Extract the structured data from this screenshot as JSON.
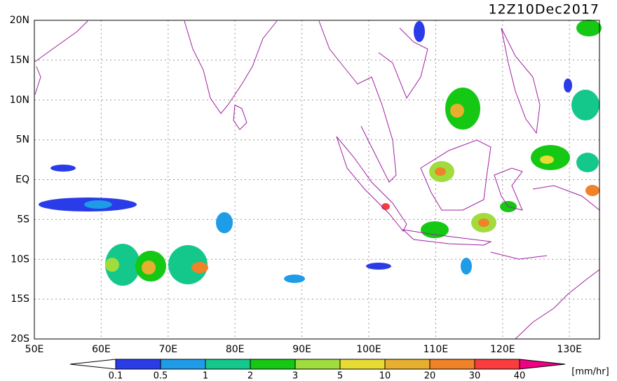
{
  "title": "12Z10Dec2017",
  "lat_labels": [
    "20N",
    "15N",
    "10N",
    "5N",
    "EQ",
    "5S",
    "10S",
    "15S",
    "20S"
  ],
  "lon_labels": [
    "50E",
    "60E",
    "70E",
    "80E",
    "90E",
    "100E",
    "110E",
    "120E",
    "130E"
  ],
  "colorbar": {
    "labels": [
      0.1,
      0.5,
      1,
      2,
      3,
      5,
      10,
      20,
      30,
      40
    ],
    "unit": "[mm/hr]",
    "colors": [
      "#ffffff",
      "#2a3ce8",
      "#1e9ce8",
      "#14c88c",
      "#14c814",
      "#a0dc3c",
      "#e6dc32",
      "#e6af2d",
      "#f08228",
      "#fa3c3c",
      "#f00082"
    ]
  }
}
